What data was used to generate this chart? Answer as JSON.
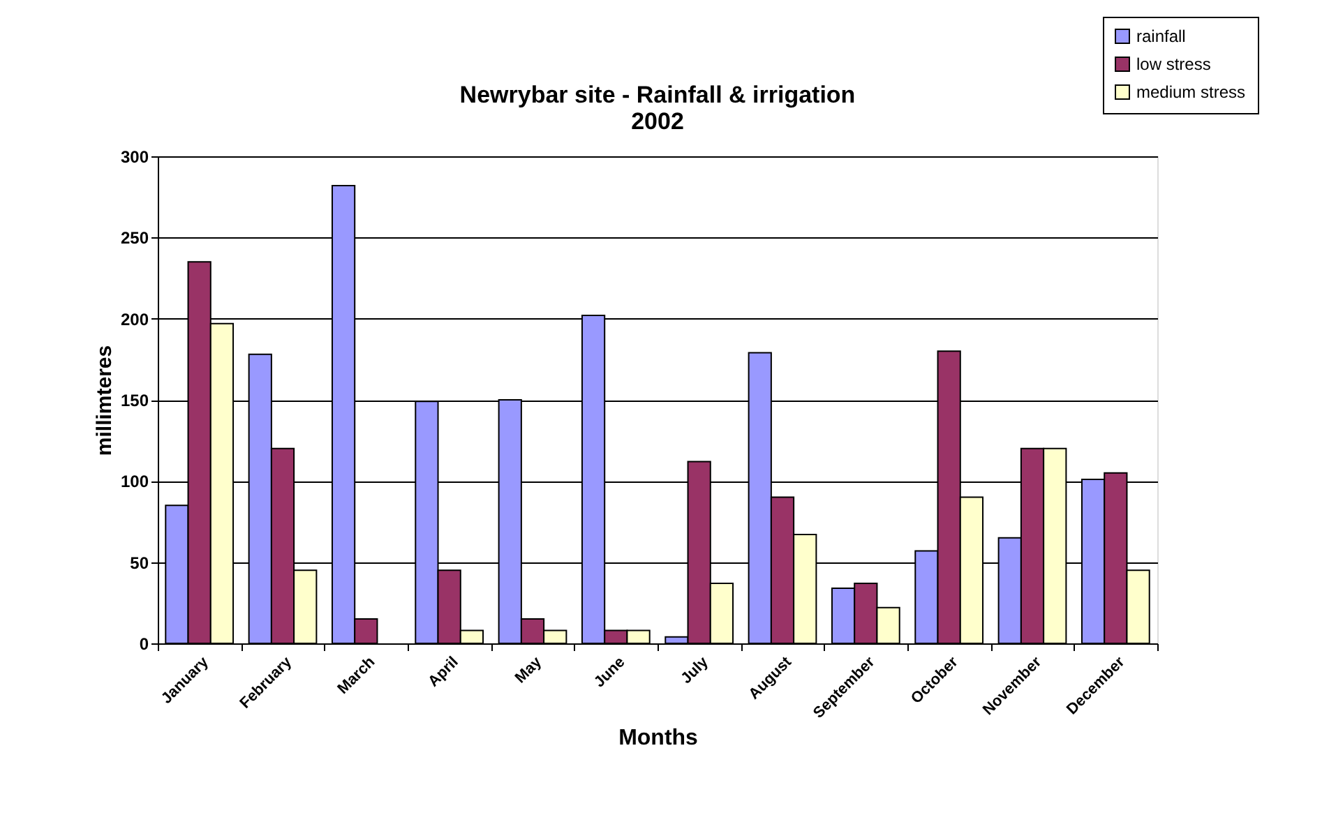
{
  "chart_data": {
    "type": "bar",
    "title": [
      "Newrybar site - Rainfall & irrigation",
      "2002"
    ],
    "xlabel": "Months",
    "ylabel": "millimteres",
    "categories": [
      "January",
      "February",
      "March",
      "April",
      "May",
      "June",
      "July",
      "August",
      "September",
      "October",
      "November",
      "December"
    ],
    "series": [
      {
        "name": "rainfall",
        "color": "#9999ff",
        "values": [
          85,
          178,
          282,
          149,
          150,
          202,
          4,
          179,
          34,
          57,
          65,
          101
        ]
      },
      {
        "name": "low stress",
        "color": "#993366",
        "values": [
          235,
          120,
          15,
          45,
          15,
          8,
          112,
          90,
          37,
          180,
          120,
          105
        ]
      },
      {
        "name": "medium stress",
        "color": "#ffffcc",
        "values": [
          197,
          45,
          null,
          8,
          8,
          8,
          37,
          67,
          22,
          90,
          120,
          45
        ]
      }
    ],
    "ylim": [
      0,
      300
    ],
    "yticks": [
      0,
      50,
      100,
      150,
      200,
      250,
      300
    ],
    "grid": "y",
    "legend": "top right"
  }
}
